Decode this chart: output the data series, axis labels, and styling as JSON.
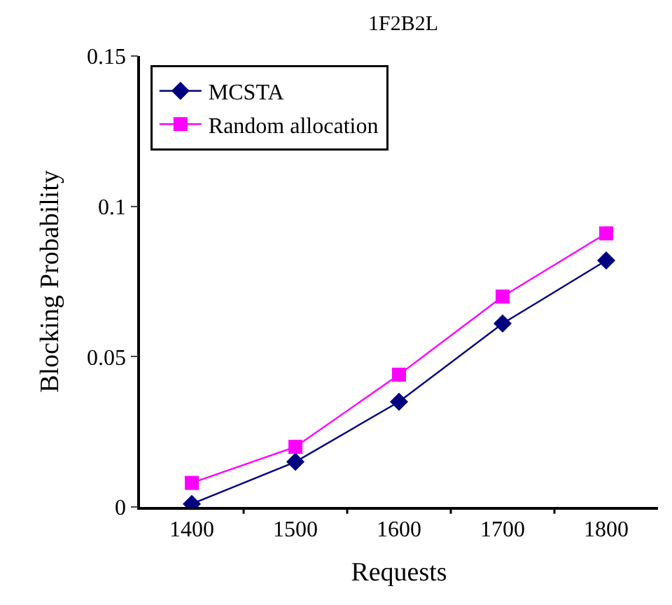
{
  "chart_data": {
    "type": "line",
    "title": "1F2B2L",
    "xlabel": "Requests",
    "ylabel": "Blocking Probability",
    "categories": [
      "1400",
      "1500",
      "1600",
      "1700",
      "1800"
    ],
    "series": [
      {
        "name": "MCSTA",
        "color": "#000080",
        "marker": "diamond",
        "values": [
          0.001,
          0.015,
          0.035,
          0.061,
          0.082
        ]
      },
      {
        "name": "Random allocation",
        "color": "#ff00ff",
        "marker": "square",
        "values": [
          0.008,
          0.02,
          0.044,
          0.07,
          0.091
        ]
      }
    ],
    "ylim": [
      0,
      0.15
    ],
    "yticks": [
      0,
      0.05,
      0.1,
      0.15
    ],
    "grid": false,
    "legend": "top left",
    "line_style": "solid"
  }
}
